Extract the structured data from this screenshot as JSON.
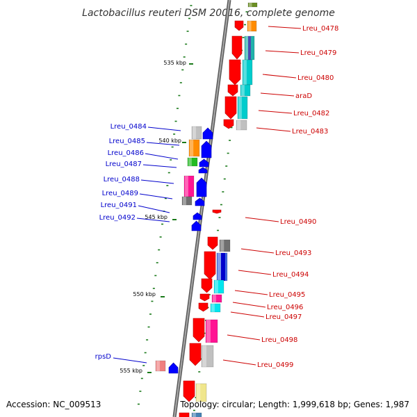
{
  "title": "Lactobacillus reuteri DSM 20016, complete genome",
  "accession": "Accession: NC_009513",
  "topology": "Topology: circular; Length: 1,999,618 bp; Genes: 1,987",
  "kbp_labels": [
    "535 kbp",
    "540 kbp",
    "545 kbp",
    "550 kbp",
    "555 kbp"
  ],
  "right_genes": [
    "Lreu_0478",
    "Lreu_0479",
    "Lreu_0480",
    "araD",
    "Lreu_0482",
    "Lreu_0483",
    "Lreu_0490",
    "Lreu_0493",
    "Lreu_0494",
    "Lreu_0495",
    "Lreu_0496",
    "Lreu_0497",
    "Lreu_0498",
    "Lreu_0499"
  ],
  "left_genes": [
    "Lreu_0484",
    "Lreu_0485",
    "Lreu_0486",
    "Lreu_0487",
    "Lreu_0488",
    "Lreu_0489",
    "Lreu_0491",
    "Lreu_0492",
    "rpsD"
  ],
  "colors": {
    "backbone": "#7f7f7f",
    "forward_gene": "#ff0000",
    "reverse_gene": "#0000ff",
    "tick": "#1a7a1a",
    "label_right": "#cc0000",
    "label_left": "#0000cc"
  }
}
